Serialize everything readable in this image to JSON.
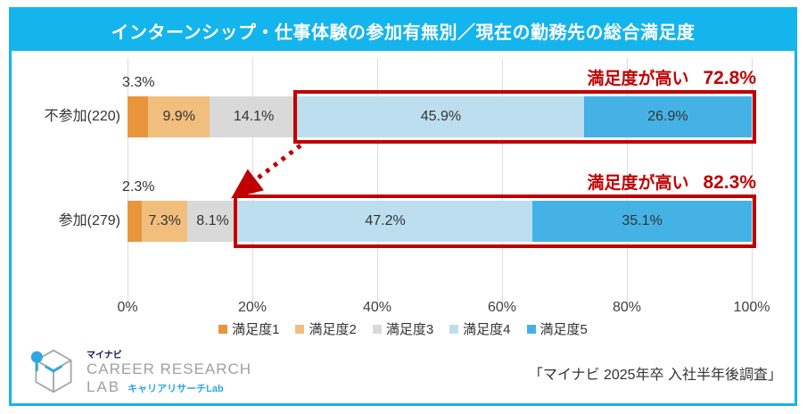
{
  "colors": {
    "accent_cyan": "#14B4EC",
    "highlight_red": "#C00000",
    "grid_gray": "#DCDCDC",
    "text_dark": "#333333"
  },
  "title": "インターンシップ・仕事体験の参加有無別／現在の勤務先の総合満足度",
  "chart_data": {
    "type": "bar",
    "orientation": "horizontal",
    "stacked": true,
    "categories": [
      "不参加(220)",
      "参加(279)"
    ],
    "series": [
      {
        "name": "満足度1",
        "color": "#E8953C",
        "values": [
          3.3,
          2.3
        ]
      },
      {
        "name": "満足度2",
        "color": "#F2BE7E",
        "values": [
          9.9,
          7.3
        ]
      },
      {
        "name": "満足度3",
        "color": "#D9D9D9",
        "values": [
          14.1,
          8.1
        ]
      },
      {
        "name": "満足度4",
        "color": "#BCDEEE",
        "values": [
          45.9,
          47.2
        ]
      },
      {
        "name": "満足度5",
        "color": "#45B2E5",
        "values": [
          26.9,
          35.1
        ]
      }
    ],
    "value_suffix": "%",
    "x_ticks": [
      "0%",
      "20%",
      "40%",
      "60%",
      "80%",
      "100%"
    ],
    "xlim": [
      0,
      100
    ],
    "grid": true,
    "legend_position": "bottom",
    "annotations": [
      {
        "label": "満足度が高い",
        "value": "72.8%",
        "row": 0,
        "boxed_series_start": 3
      },
      {
        "label": "満足度が高い",
        "value": "82.3%",
        "row": 1,
        "boxed_series_start": 3
      }
    ]
  },
  "footer": {
    "logo": {
      "brand_small": "マイナビ",
      "brand_line1": "CAREER RESEARCH",
      "brand_line2": "LAB",
      "brand_sub": "キャリアリサーチLab"
    },
    "source": "「マイナビ 2025年卒 入社半年後調査」"
  }
}
